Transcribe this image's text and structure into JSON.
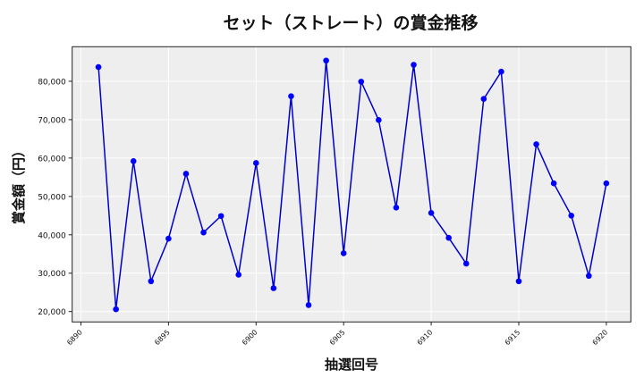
{
  "chart_data": {
    "type": "line",
    "title": "セット（ストレート）の賞金推移",
    "xlabel": "抽選回号",
    "ylabel": "賞金額（円）",
    "x": [
      6891,
      6892,
      6893,
      6894,
      6895,
      6896,
      6897,
      6898,
      6899,
      6900,
      6901,
      6902,
      6903,
      6904,
      6905,
      6906,
      6907,
      6908,
      6909,
      6910,
      6911,
      6912,
      6913,
      6914,
      6915,
      6916,
      6917,
      6918,
      6919,
      6920
    ],
    "series": [
      {
        "name": "賞金額",
        "color": "#0000cc",
        "marker_color": "#0000ff",
        "values": [
          83700,
          20600,
          59200,
          27900,
          39000,
          55900,
          40600,
          44900,
          29600,
          58700,
          26100,
          76100,
          21700,
          85400,
          35200,
          79900,
          69900,
          47100,
          84300,
          45700,
          39200,
          32500,
          75400,
          82500,
          27900,
          63600,
          53400,
          45000,
          29300,
          53400
        ]
      }
    ],
    "xticks": [
      6890,
      6895,
      6900,
      6905,
      6910,
      6915,
      6920
    ],
    "xtick_labels": [
      "6890",
      "6895",
      "6900",
      "6905",
      "6910",
      "6915",
      "6920"
    ],
    "yticks": [
      20000,
      30000,
      40000,
      50000,
      60000,
      70000,
      80000
    ],
    "ytick_labels": [
      "20,000",
      "30,000",
      "40,000",
      "50,000",
      "60,000",
      "70,000",
      "80,000"
    ],
    "xlim": [
      6889.5,
      6921.4
    ],
    "ylim": [
      17300,
      89000
    ],
    "grid": true,
    "legend": "none",
    "colors": {
      "plot_background": "#eeeeee",
      "grid": "#ffffff",
      "line": "#0000cc",
      "marker": "#0000ff"
    }
  }
}
